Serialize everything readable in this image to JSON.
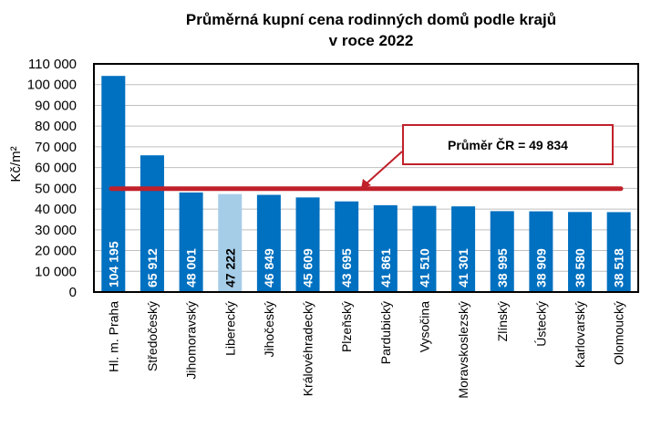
{
  "chart_data": {
    "type": "bar",
    "title_line1": "Průměrná kupní cena rodinných domů podle krajů",
    "title_line2": "v roce 2022",
    "ylabel": "Kč/m²",
    "ylim": [
      0,
      110000
    ],
    "yticks": [
      "0",
      "10 000",
      "20 000",
      "30 000",
      "40 000",
      "50 000",
      "60 000",
      "70 000",
      "80 000",
      "90 000",
      "100 000",
      "110 000"
    ],
    "grid": true,
    "categories": [
      "Hl. m. Praha",
      "Středočeský",
      "Jihomoravský",
      "Liberecký",
      "Jihočeský",
      "Královéhradecký",
      "Plzeňský",
      "Pardubický",
      "Vysočina",
      "Moravskoslezský",
      "Zlínský",
      "Ústecký",
      "Karlovarský",
      "Olomoucký"
    ],
    "values": [
      104195,
      65912,
      48001,
      47222,
      46849,
      45609,
      43695,
      41861,
      41510,
      41301,
      38995,
      38909,
      38580,
      38518
    ],
    "value_labels": [
      "104 195",
      "65 912",
      "48 001",
      "47 222",
      "46 849",
      "45 609",
      "43 695",
      "41 861",
      "41 510",
      "41 301",
      "38 995",
      "38 909",
      "38 580",
      "38 518"
    ],
    "highlight_index": 3,
    "reference_line": {
      "value": 49834,
      "label": "Průměr ČR = 49 834"
    },
    "colors": {
      "bar": "#0070C0",
      "highlight": "#A6CDE8",
      "reference": "#C0202A",
      "grid": "#BFBFBF"
    }
  }
}
